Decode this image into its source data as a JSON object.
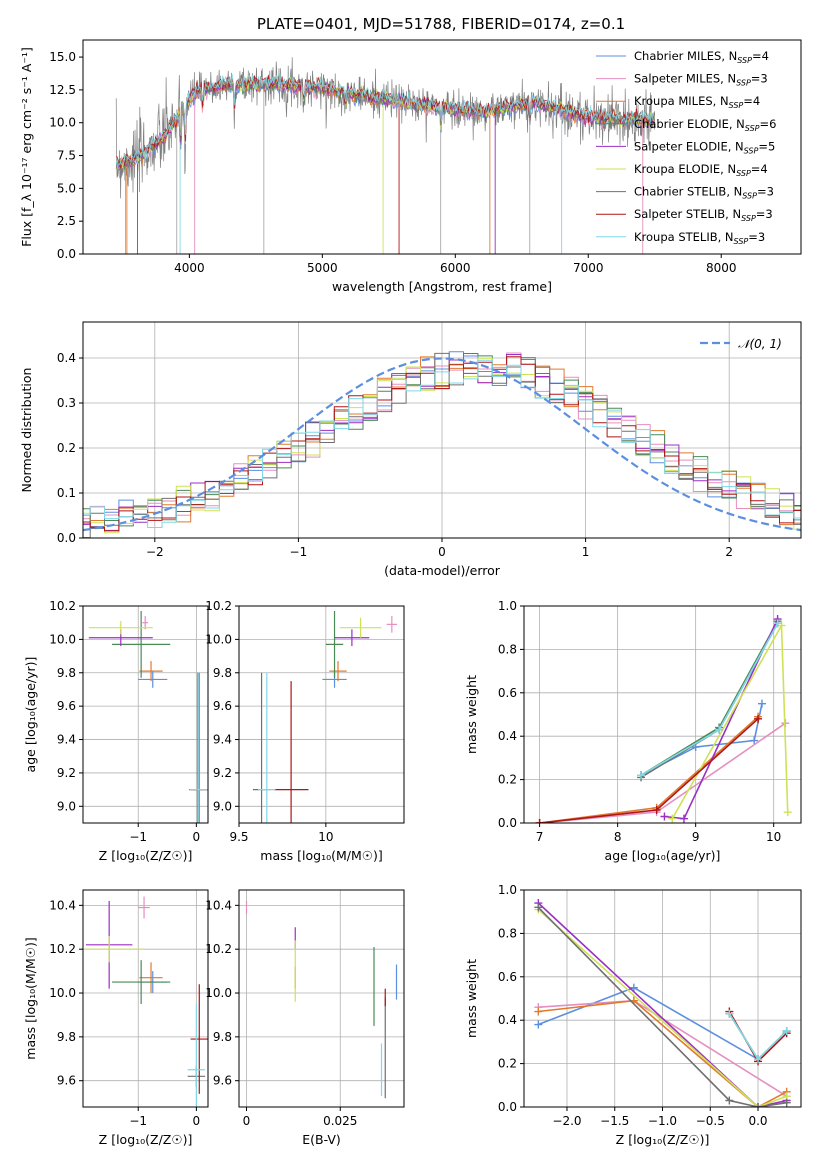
{
  "title": "PLATE=0401, MJD=51788, FIBERID=0174, z=0.1",
  "colors": [
    "#5b8fe0",
    "#e58fc0",
    "#e07a2e",
    "#4a8a55",
    "#9b2fc4",
    "#cfe256",
    "#707070",
    "#b01515",
    "#7fd8e8"
  ],
  "legend": [
    {
      "label": "Chabrier MILES, N",
      "sub": "SSP",
      "rest": "=4"
    },
    {
      "label": "Salpeter MILES, N",
      "sub": "SSP",
      "rest": "=3"
    },
    {
      "label": "Kroupa MILES, N",
      "sub": "SSP",
      "rest": "=4"
    },
    {
      "label": "Chabrier ELODIE, N",
      "sub": "SSP",
      "rest": "=6"
    },
    {
      "label": "Salpeter ELODIE, N",
      "sub": "SSP",
      "rest": "=5"
    },
    {
      "label": "Kroupa ELODIE, N",
      "sub": "SSP",
      "rest": "=4"
    },
    {
      "label": "Chabrier STELIB, N",
      "sub": "SSP",
      "rest": "=3"
    },
    {
      "label": "Salpeter STELIB, N",
      "sub": "SSP",
      "rest": "=3"
    },
    {
      "label": "Kroupa STELIB, N",
      "sub": "SSP",
      "rest": "=3"
    }
  ],
  "normal_label": "𝒩(0, 1)",
  "chart_data": [
    {
      "id": "spectrum",
      "type": "line",
      "xlabel": "wavelength [Angstrom, rest frame]",
      "ylabel": "Flux [f_λ 10⁻¹⁷ erg cm⁻² s⁻¹ A⁻¹]",
      "xlim": [
        3200,
        8600
      ],
      "ylim": [
        0,
        16.3
      ],
      "xticks": [
        4000,
        5000,
        6000,
        7000,
        8000
      ],
      "yticks": [
        0.0,
        2.5,
        5.0,
        7.5,
        10.0,
        12.5,
        15.0
      ],
      "continuum_x": [
        3450,
        3600,
        3800,
        3950,
        4050,
        4300,
        4600,
        5000,
        5400,
        5800,
        6200,
        6600,
        7000,
        7400,
        7500
      ],
      "continuum_y": [
        6.8,
        7.2,
        8.8,
        11.0,
        12.4,
        12.9,
        13.0,
        12.6,
        11.9,
        11.3,
        10.8,
        11.5,
        10.4,
        10.2,
        10.1
      ],
      "grid": false
    },
    {
      "id": "histogram",
      "type": "bar",
      "xlabel": "(data-model)/error",
      "ylabel": "Normed distribution",
      "xlim": [
        -2.5,
        2.5
      ],
      "ylim": [
        0,
        0.48
      ],
      "xticks": [
        -2,
        -1,
        0,
        1,
        2
      ],
      "yticks": [
        0.0,
        0.1,
        0.2,
        0.3,
        0.4
      ],
      "bin_width": 0.1,
      "grid": true
    },
    {
      "id": "age_vs_Z",
      "type": "scatter",
      "xlabel": "Z [log₁₀(Z/Z☉)]",
      "ylabel": "age  [log₁₀(age/yr)]",
      "xlim": [
        -1.95,
        0.2
      ],
      "ylim": [
        8.9,
        10.2
      ],
      "xticks": [
        -1,
        0
      ],
      "yticks": [
        9.0,
        9.2,
        9.4,
        9.6,
        9.8,
        10.0,
        10.2
      ],
      "points": [
        {
          "x": -0.75,
          "y": 9.76,
          "dx": 0.25,
          "dy": 0.05
        },
        {
          "x": -0.88,
          "y": 10.1,
          "dx": 0.05,
          "dy": 0.04
        },
        {
          "x": -0.78,
          "y": 9.81,
          "dx": 0.2,
          "dy": 0.06
        },
        {
          "x": -0.95,
          "y": 9.97,
          "dx": 0.5,
          "dy": 0.2
        },
        {
          "x": -1.3,
          "y": 10.01,
          "dx": 0.55,
          "dy": 0.05
        },
        {
          "x": -1.3,
          "y": 10.07,
          "dx": 0.55,
          "dy": 0.04
        },
        {
          "x": 0.05,
          "y": 9.1,
          "dx": 0.15,
          "dy": 0.7
        },
        {
          "x": 0.03,
          "y": 9.1,
          "dx": 0.15,
          "dy": 0.7
        },
        {
          "x": 0.04,
          "y": 9.1,
          "dx": 0.15,
          "dy": 0.7
        }
      ]
    },
    {
      "id": "age_vs_mass",
      "type": "scatter",
      "xlabel": "mass [log₁₀(M/M☉)]",
      "ylabel": "",
      "xlim": [
        9.5,
        10.45
      ],
      "ylim": [
        8.9,
        10.2
      ],
      "xticks": [
        9.5,
        10.0
      ],
      "yticks": [
        9.0,
        9.2,
        9.4,
        9.6,
        9.8,
        10.0,
        10.2
      ],
      "points": [
        {
          "x": 10.05,
          "y": 9.76,
          "dx": 0.07,
          "dy": 0.05
        },
        {
          "x": 10.38,
          "y": 10.09,
          "dx": 0.03,
          "dy": 0.05
        },
        {
          "x": 10.07,
          "y": 9.81,
          "dx": 0.05,
          "dy": 0.06
        },
        {
          "x": 10.05,
          "y": 9.97,
          "dx": 0.05,
          "dy": 0.2
        },
        {
          "x": 10.15,
          "y": 10.01,
          "dx": 0.1,
          "dy": 0.05
        },
        {
          "x": 10.2,
          "y": 10.07,
          "dx": 0.12,
          "dy": 0.06
        },
        {
          "x": 9.63,
          "y": 9.1,
          "dx": 0.05,
          "dy": 0.7
        },
        {
          "x": 9.8,
          "y": 9.1,
          "dx": 0.1,
          "dy": 0.65
        },
        {
          "x": 9.66,
          "y": 9.1,
          "dx": 0.05,
          "dy": 0.7
        }
      ]
    },
    {
      "id": "weight_vs_age",
      "type": "line",
      "xlabel": "age  [log₁₀(age/yr)]",
      "ylabel": "mass weight",
      "xlim": [
        6.8,
        10.35
      ],
      "ylim": [
        0,
        1.0
      ],
      "xticks": [
        7,
        8,
        9,
        10
      ],
      "yticks": [
        0.0,
        0.2,
        0.4,
        0.6,
        0.8,
        1.0
      ],
      "series": [
        {
          "x": [
            8.3,
            9.0,
            9.75,
            9.85
          ],
          "y": [
            0.22,
            0.35,
            0.38,
            0.55
          ]
        },
        {
          "x": [
            7.0,
            8.5,
            10.15
          ],
          "y": [
            0.0,
            0.05,
            0.46
          ]
        },
        {
          "x": [
            7.0,
            8.5,
            9.8
          ],
          "y": [
            0.0,
            0.07,
            0.49
          ]
        },
        {
          "x": [
            8.3,
            9.3,
            10.05
          ],
          "y": [
            0.22,
            0.44,
            0.93
          ]
        },
        {
          "x": [
            8.6,
            8.85,
            10.05
          ],
          "y": [
            0.03,
            0.02,
            0.94
          ]
        },
        {
          "x": [
            8.7,
            10.1,
            10.18
          ],
          "y": [
            0.02,
            0.91,
            0.05
          ]
        },
        {
          "x": [
            8.3,
            9.3,
            10.05
          ],
          "y": [
            0.21,
            0.43,
            0.92
          ]
        },
        {
          "x": [
            7.0,
            8.5,
            9.8
          ],
          "y": [
            0.0,
            0.06,
            0.48
          ]
        },
        {
          "x": [
            8.3,
            9.3,
            10.05
          ],
          "y": [
            0.22,
            0.43,
            0.92
          ]
        }
      ]
    },
    {
      "id": "mass_vs_Z",
      "type": "scatter",
      "xlabel": "Z [log₁₀(Z/Z☉)]",
      "ylabel": "mass [log₁₀(M/M☉)]",
      "xlim": [
        -1.95,
        0.2
      ],
      "ylim": [
        9.48,
        10.47
      ],
      "xticks": [
        -1,
        0
      ],
      "yticks": [
        9.6,
        9.8,
        10.0,
        10.2,
        10.4
      ],
      "points": [
        {
          "x": -0.75,
          "y": 10.05,
          "dx": 0.25,
          "dy": 0.05
        },
        {
          "x": -0.9,
          "y": 10.39,
          "dx": 0.1,
          "dy": 0.05
        },
        {
          "x": -0.78,
          "y": 10.07,
          "dx": 0.2,
          "dy": 0.07
        },
        {
          "x": -0.95,
          "y": 10.05,
          "dx": 0.5,
          "dy": 0.1
        },
        {
          "x": -1.5,
          "y": 10.22,
          "dx": 0.4,
          "dy": 0.2
        },
        {
          "x": -1.5,
          "y": 10.2,
          "dx": 0.6,
          "dy": 0.06
        },
        {
          "x": 0.0,
          "y": 9.62,
          "dx": 0.15,
          "dy": 0.05
        },
        {
          "x": 0.05,
          "y": 9.79,
          "dx": 0.15,
          "dy": 0.25
        },
        {
          "x": 0.0,
          "y": 9.65,
          "dx": 0.15,
          "dy": 0.3
        }
      ]
    },
    {
      "id": "mass_vs_ebv",
      "type": "scatter",
      "xlabel": "E(B-V)",
      "ylabel": "",
      "xlim": [
        -0.002,
        0.042
      ],
      "ylim": [
        9.48,
        10.47
      ],
      "xticks": [
        0.0,
        0.025
      ],
      "yticks": [
        9.6,
        9.8,
        10.0,
        10.2,
        10.4
      ],
      "points": [
        {
          "x": 0.04,
          "y": 10.05,
          "dx": 0,
          "dy": 0.08
        },
        {
          "x": 0.0,
          "y": 10.39,
          "dx": 0,
          "dy": 0.03
        },
        {
          "x": 0.013,
          "y": 10.07,
          "dx": 0,
          "dy": 0.05
        },
        {
          "x": 0.034,
          "y": 10.03,
          "dx": 0,
          "dy": 0.18
        },
        {
          "x": 0.013,
          "y": 10.25,
          "dx": 0,
          "dy": 0.05
        },
        {
          "x": 0.013,
          "y": 10.1,
          "dx": 0,
          "dy": 0.14
        },
        {
          "x": 0.037,
          "y": 9.75,
          "dx": 0,
          "dy": 0.23
        },
        {
          "x": 0.037,
          "y": 9.98,
          "dx": 0,
          "dy": 0.04
        },
        {
          "x": 0.036,
          "y": 9.65,
          "dx": 0,
          "dy": 0.12
        }
      ]
    },
    {
      "id": "weight_vs_Z",
      "type": "line",
      "xlabel": "Z [log₁₀(Z/Z☉)]",
      "ylabel": "mass weight",
      "xlim": [
        -2.45,
        0.45
      ],
      "ylim": [
        0,
        1.0
      ],
      "xticks": [
        -2.0,
        -1.5,
        -1.0,
        -0.5,
        0.0
      ],
      "xtick_labels": [
        "−2.0",
        "−1.5",
        "−1.0",
        "−0.5",
        "0.0"
      ],
      "yticks": [
        0.0,
        0.2,
        0.4,
        0.6,
        0.8,
        1.0
      ],
      "series": [
        {
          "x": [
            -2.3,
            -1.3,
            0.0,
            0.3
          ],
          "y": [
            0.38,
            0.55,
            0.22,
            0.35
          ]
        },
        {
          "x": [
            -2.3,
            -1.3,
            0.3
          ],
          "y": [
            0.46,
            0.49,
            0.05
          ]
        },
        {
          "x": [
            -2.3,
            -1.3,
            0.0,
            0.3
          ],
          "y": [
            0.44,
            0.49,
            0.0,
            0.07
          ]
        },
        {
          "x": [
            -0.3,
            0.0,
            0.3
          ],
          "y": [
            0.43,
            0.22,
            0.35
          ]
        },
        {
          "x": [
            -2.3,
            0.0,
            0.3
          ],
          "y": [
            0.94,
            0.0,
            0.03
          ]
        },
        {
          "x": [
            -2.3,
            0.0,
            0.3
          ],
          "y": [
            0.91,
            0.0,
            0.05
          ]
        },
        {
          "x": [
            -2.3,
            -0.3,
            0.0,
            0.3
          ],
          "y": [
            0.92,
            0.03,
            0.0,
            0.02
          ]
        },
        {
          "x": [
            -0.3,
            0.0,
            0.3
          ],
          "y": [
            0.44,
            0.21,
            0.34
          ]
        },
        {
          "x": [
            -0.3,
            0.0,
            0.3
          ],
          "y": [
            0.43,
            0.22,
            0.35
          ]
        }
      ]
    }
  ]
}
